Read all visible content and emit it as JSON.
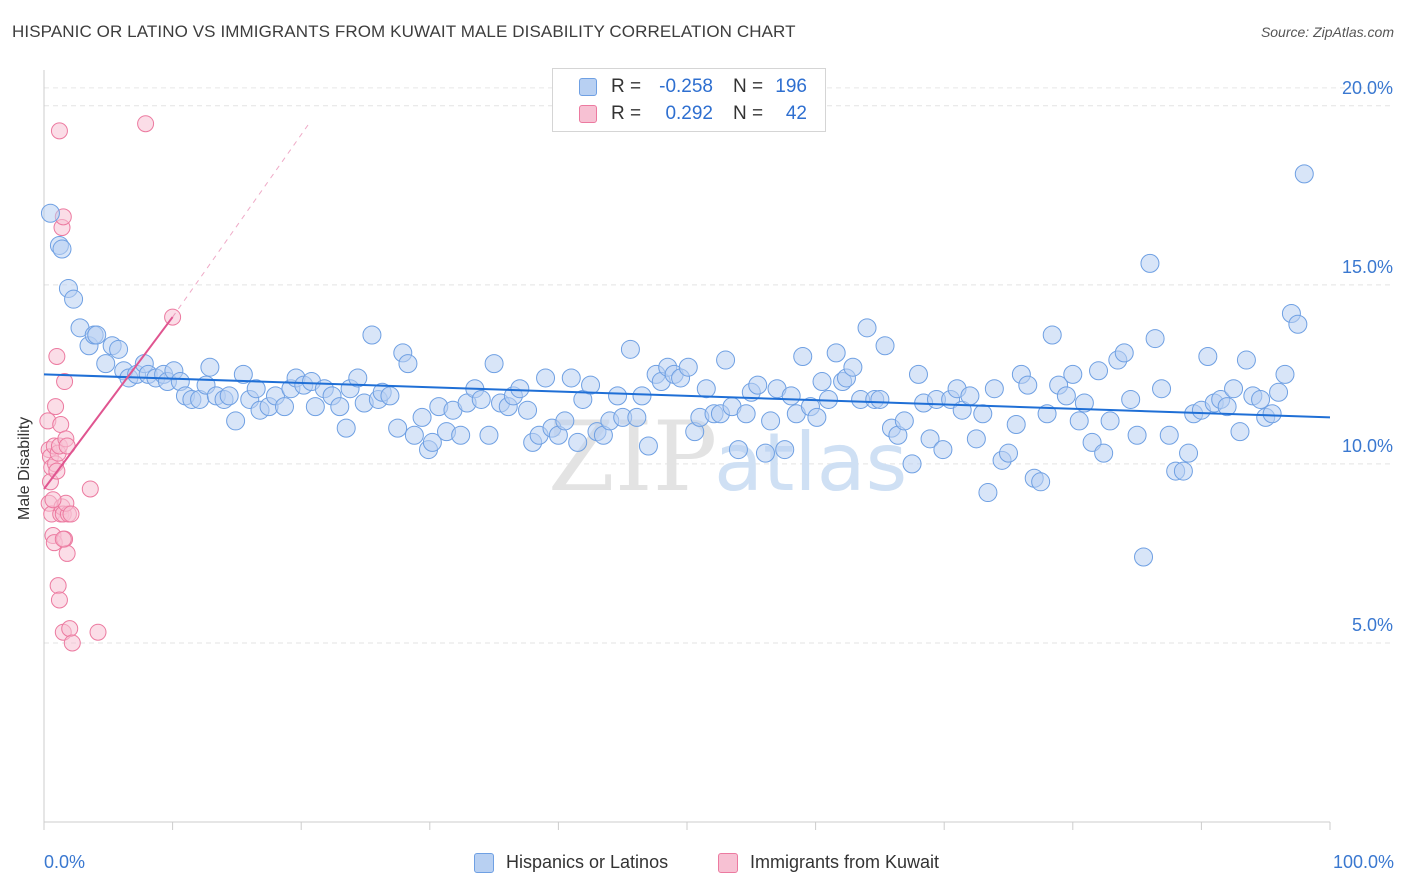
{
  "title": "HISPANIC OR LATINO VS IMMIGRANTS FROM KUWAIT MALE DISABILITY CORRELATION CHART",
  "source": "Source: ZipAtlas.com",
  "watermark": {
    "zip": "ZIP",
    "atlas": "atlas"
  },
  "colors": {
    "blue": "#6fa0e3",
    "blue_fill": "#b8d0f2",
    "pink": "#ec7aa0",
    "pink_fill": "#f7c1d3",
    "blue_line": "#1f6fd6",
    "pink_line": "#e05590",
    "tick_text": "#3a78d0"
  },
  "legend": {
    "rows": [
      {
        "r_label": "R =",
        "r_value": "-0.258",
        "n_label": "N =",
        "n_value": "196"
      },
      {
        "r_label": "R =",
        "r_value": "0.292",
        "n_label": "N =",
        "n_value": "42"
      }
    ]
  },
  "bottom_legend": {
    "series_1": "Hispanics or Latinos",
    "series_2": "Immigrants from Kuwait"
  },
  "chart_data": {
    "type": "scatter",
    "title": "HISPANIC OR LATINO VS IMMIGRANTS FROM KUWAIT MALE DISABILITY CORRELATION CHART",
    "xlabel": "",
    "ylabel": "Male Disability",
    "xlim": [
      0,
      100
    ],
    "ylim": [
      0,
      21
    ],
    "x_tick_labels": {
      "min": "0.0%",
      "max": "100.0%"
    },
    "y_ticks": [
      {
        "value": 5,
        "label": "5.0%"
      },
      {
        "value": 10,
        "label": "10.0%"
      },
      {
        "value": 15,
        "label": "15.0%"
      },
      {
        "value": 20,
        "label": "20.0%"
      }
    ],
    "series": [
      {
        "name": "Hispanics or Latinos",
        "trend": {
          "x": [
            0,
            100
          ],
          "y": [
            12.5,
            11.3
          ]
        },
        "points": [
          [
            0.5,
            17.0
          ],
          [
            1.2,
            16.1
          ],
          [
            1.4,
            16.0
          ],
          [
            1.9,
            14.9
          ],
          [
            2.3,
            14.6
          ],
          [
            2.8,
            13.8
          ],
          [
            3.5,
            13.3
          ],
          [
            3.9,
            13.6
          ],
          [
            4.1,
            13.6
          ],
          [
            4.8,
            12.8
          ],
          [
            5.3,
            13.3
          ],
          [
            5.8,
            13.2
          ],
          [
            6.2,
            12.6
          ],
          [
            6.6,
            12.4
          ],
          [
            7.2,
            12.5
          ],
          [
            7.8,
            12.8
          ],
          [
            8.1,
            12.5
          ],
          [
            8.7,
            12.4
          ],
          [
            9.3,
            12.5
          ],
          [
            9.6,
            12.3
          ],
          [
            10.1,
            12.6
          ],
          [
            10.6,
            12.3
          ],
          [
            11.0,
            11.9
          ],
          [
            11.5,
            11.8
          ],
          [
            12.1,
            11.8
          ],
          [
            12.6,
            12.2
          ],
          [
            12.9,
            12.7
          ],
          [
            13.4,
            11.9
          ],
          [
            14.0,
            11.8
          ],
          [
            14.4,
            11.9
          ],
          [
            14.9,
            11.2
          ],
          [
            15.5,
            12.5
          ],
          [
            16.0,
            11.8
          ],
          [
            16.5,
            12.1
          ],
          [
            16.8,
            11.5
          ],
          [
            17.5,
            11.6
          ],
          [
            18.0,
            11.9
          ],
          [
            18.7,
            11.6
          ],
          [
            19.2,
            12.1
          ],
          [
            19.6,
            12.4
          ],
          [
            20.2,
            12.2
          ],
          [
            20.8,
            12.3
          ],
          [
            21.1,
            11.6
          ],
          [
            21.8,
            12.1
          ],
          [
            22.4,
            11.9
          ],
          [
            23.0,
            11.6
          ],
          [
            23.5,
            11.0
          ],
          [
            23.8,
            12.1
          ],
          [
            24.4,
            12.4
          ],
          [
            24.9,
            11.7
          ],
          [
            25.5,
            13.6
          ],
          [
            26.0,
            11.8
          ],
          [
            26.3,
            12.0
          ],
          [
            26.9,
            11.9
          ],
          [
            27.5,
            11.0
          ],
          [
            27.9,
            13.1
          ],
          [
            28.3,
            12.8
          ],
          [
            28.8,
            10.8
          ],
          [
            29.4,
            11.3
          ],
          [
            29.9,
            10.4
          ],
          [
            30.2,
            10.6
          ],
          [
            30.7,
            11.6
          ],
          [
            31.3,
            10.9
          ],
          [
            31.8,
            11.5
          ],
          [
            32.4,
            10.8
          ],
          [
            32.9,
            11.7
          ],
          [
            33.5,
            12.1
          ],
          [
            34.0,
            11.8
          ],
          [
            34.6,
            10.8
          ],
          [
            35.0,
            12.8
          ],
          [
            35.5,
            11.7
          ],
          [
            36.1,
            11.6
          ],
          [
            36.5,
            11.9
          ],
          [
            37.0,
            12.1
          ],
          [
            37.6,
            11.5
          ],
          [
            38.0,
            10.6
          ],
          [
            38.5,
            10.8
          ],
          [
            39.0,
            12.4
          ],
          [
            39.5,
            11.0
          ],
          [
            40.0,
            10.8
          ],
          [
            40.5,
            11.2
          ],
          [
            41.0,
            12.4
          ],
          [
            41.5,
            10.6
          ],
          [
            41.9,
            11.8
          ],
          [
            42.5,
            12.2
          ],
          [
            43.0,
            10.9
          ],
          [
            43.5,
            10.8
          ],
          [
            44.0,
            11.2
          ],
          [
            44.6,
            11.9
          ],
          [
            45.0,
            11.3
          ],
          [
            45.6,
            13.2
          ],
          [
            46.1,
            11.3
          ],
          [
            46.5,
            11.9
          ],
          [
            47.0,
            10.5
          ],
          [
            47.6,
            12.5
          ],
          [
            48.0,
            12.3
          ],
          [
            48.5,
            12.7
          ],
          [
            49.0,
            12.5
          ],
          [
            49.5,
            12.4
          ],
          [
            50.1,
            12.7
          ],
          [
            50.6,
            10.9
          ],
          [
            51.0,
            11.3
          ],
          [
            51.5,
            12.1
          ],
          [
            52.1,
            11.4
          ],
          [
            52.6,
            11.4
          ],
          [
            53.0,
            12.9
          ],
          [
            53.5,
            11.6
          ],
          [
            54.0,
            10.4
          ],
          [
            54.6,
            11.4
          ],
          [
            55.0,
            12.0
          ],
          [
            55.5,
            12.2
          ],
          [
            56.1,
            10.3
          ],
          [
            56.5,
            11.2
          ],
          [
            57.0,
            12.1
          ],
          [
            57.6,
            10.4
          ],
          [
            58.1,
            11.9
          ],
          [
            58.5,
            11.4
          ],
          [
            59.0,
            13.0
          ],
          [
            59.6,
            11.6
          ],
          [
            60.1,
            11.3
          ],
          [
            60.5,
            12.3
          ],
          [
            61.0,
            11.8
          ],
          [
            61.6,
            13.1
          ],
          [
            62.1,
            12.3
          ],
          [
            62.4,
            12.4
          ],
          [
            62.9,
            12.7
          ],
          [
            63.5,
            11.8
          ],
          [
            64.0,
            13.8
          ],
          [
            64.6,
            11.8
          ],
          [
            65.0,
            11.8
          ],
          [
            65.4,
            13.3
          ],
          [
            65.9,
            11.0
          ],
          [
            66.4,
            10.8
          ],
          [
            66.9,
            11.2
          ],
          [
            67.5,
            10.0
          ],
          [
            68.0,
            12.5
          ],
          [
            68.4,
            11.7
          ],
          [
            68.9,
            10.7
          ],
          [
            69.4,
            11.8
          ],
          [
            69.9,
            10.4
          ],
          [
            70.5,
            11.8
          ],
          [
            71.0,
            12.1
          ],
          [
            71.4,
            11.5
          ],
          [
            72.0,
            11.9
          ],
          [
            72.5,
            10.7
          ],
          [
            73.0,
            11.4
          ],
          [
            73.4,
            9.2
          ],
          [
            73.9,
            12.1
          ],
          [
            74.5,
            10.1
          ],
          [
            75.0,
            10.3
          ],
          [
            75.6,
            11.1
          ],
          [
            76.0,
            12.5
          ],
          [
            76.5,
            12.2
          ],
          [
            77.0,
            9.6
          ],
          [
            77.5,
            9.5
          ],
          [
            78.0,
            11.4
          ],
          [
            78.4,
            13.6
          ],
          [
            78.9,
            12.2
          ],
          [
            79.5,
            11.9
          ],
          [
            80.0,
            12.5
          ],
          [
            80.5,
            11.2
          ],
          [
            80.9,
            11.7
          ],
          [
            81.5,
            10.6
          ],
          [
            82.0,
            12.6
          ],
          [
            82.4,
            10.3
          ],
          [
            82.9,
            11.2
          ],
          [
            83.5,
            12.9
          ],
          [
            84.0,
            13.1
          ],
          [
            84.5,
            11.8
          ],
          [
            85.0,
            10.8
          ],
          [
            85.5,
            7.4
          ],
          [
            86.0,
            15.6
          ],
          [
            86.4,
            13.5
          ],
          [
            86.9,
            12.1
          ],
          [
            87.5,
            10.8
          ],
          [
            88.0,
            9.8
          ],
          [
            88.6,
            9.8
          ],
          [
            89.0,
            10.3
          ],
          [
            89.4,
            11.4
          ],
          [
            90.0,
            11.5
          ],
          [
            90.5,
            13.0
          ],
          [
            91.0,
            11.7
          ],
          [
            91.5,
            11.8
          ],
          [
            92.0,
            11.6
          ],
          [
            92.5,
            12.1
          ],
          [
            93.0,
            10.9
          ],
          [
            93.5,
            12.9
          ],
          [
            94.0,
            11.9
          ],
          [
            94.6,
            11.8
          ],
          [
            95.0,
            11.3
          ],
          [
            95.5,
            11.4
          ],
          [
            96.0,
            12.0
          ],
          [
            96.5,
            12.5
          ],
          [
            97.0,
            14.2
          ],
          [
            97.5,
            13.9
          ],
          [
            98.0,
            18.1
          ]
        ]
      },
      {
        "name": "Immigrants from Kuwait",
        "trend": {
          "x": [
            0,
            10
          ],
          "y": [
            9.3,
            14.1
          ],
          "extend_to": [
            20.6,
            19.5
          ]
        },
        "points": [
          [
            0.3,
            11.2
          ],
          [
            0.4,
            10.4
          ],
          [
            0.5,
            10.2
          ],
          [
            0.6,
            9.9
          ],
          [
            0.5,
            9.5
          ],
          [
            0.4,
            8.9
          ],
          [
            0.6,
            8.6
          ],
          [
            0.7,
            8.0
          ],
          [
            0.8,
            7.8
          ],
          [
            0.8,
            10.5
          ],
          [
            0.9,
            10.0
          ],
          [
            1.0,
            9.8
          ],
          [
            1.1,
            10.3
          ],
          [
            1.2,
            10.5
          ],
          [
            1.3,
            11.1
          ],
          [
            0.9,
            11.6
          ],
          [
            1.0,
            13.0
          ],
          [
            1.1,
            6.6
          ],
          [
            1.2,
            6.2
          ],
          [
            1.3,
            8.6
          ],
          [
            1.4,
            8.8
          ],
          [
            1.5,
            8.6
          ],
          [
            1.6,
            7.9
          ],
          [
            1.4,
            16.6
          ],
          [
            1.5,
            16.9
          ],
          [
            1.6,
            12.3
          ],
          [
            1.7,
            10.7
          ],
          [
            1.8,
            10.5
          ],
          [
            1.9,
            8.6
          ],
          [
            1.7,
            8.9
          ],
          [
            1.8,
            7.5
          ],
          [
            1.5,
            5.3
          ],
          [
            2.0,
            5.4
          ],
          [
            2.2,
            5.0
          ],
          [
            3.6,
            9.3
          ],
          [
            4.2,
            5.3
          ],
          [
            7.9,
            19.5
          ],
          [
            10.0,
            14.1
          ],
          [
            1.2,
            19.3
          ],
          [
            0.7,
            9.0
          ],
          [
            2.1,
            8.6
          ],
          [
            1.5,
            7.9
          ]
        ]
      }
    ]
  }
}
